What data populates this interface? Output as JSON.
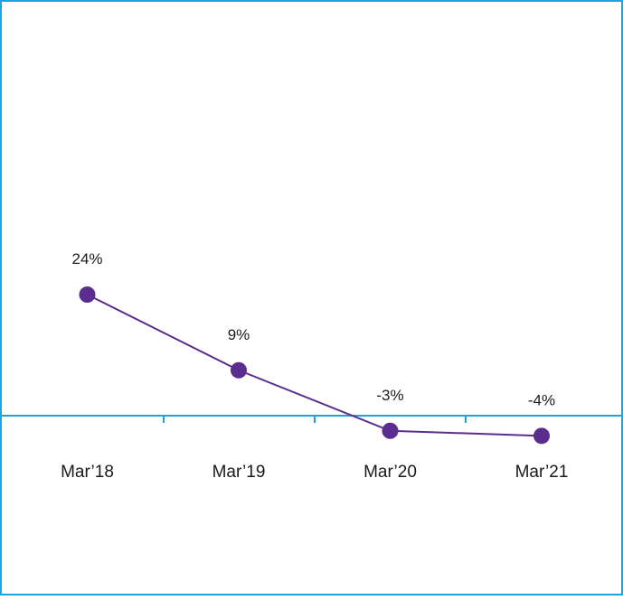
{
  "chart_data": {
    "type": "line",
    "categories": [
      "Mar’18",
      "Mar’19",
      "Mar’20",
      "Mar’21"
    ],
    "series": [
      {
        "values": [
          24,
          9,
          -3,
          -4
        ],
        "labels": [
          "24%",
          "9%",
          "-3%",
          "-4%"
        ]
      }
    ],
    "unit": "%",
    "ylim": [
      -30,
      50
    ],
    "grid": false,
    "legend": "none"
  },
  "colors": {
    "frame": "#1aa3dc",
    "axis": "#1aa3dc",
    "line": "#5b2d8e",
    "marker": "#5b2d8e"
  }
}
